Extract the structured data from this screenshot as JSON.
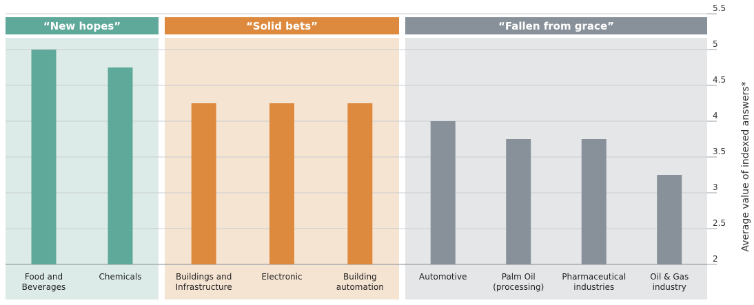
{
  "chart_data": {
    "type": "bar",
    "ylabel": "Average value of indexed answers*",
    "ylim": [
      2,
      5.5
    ],
    "yticks": [
      "5.5",
      "5",
      "4.5",
      "4",
      "3.5",
      "3",
      "2.5",
      "2"
    ],
    "grid": true,
    "groups": [
      {
        "title": "“New hopes”",
        "header_color": "#5fa99a",
        "bg_color": "#dcebe7",
        "bar_color": "#5fa99a",
        "categories": [
          [
            "Food and",
            "Beverages"
          ],
          [
            "Chemicals"
          ]
        ],
        "values": [
          5.0,
          4.75
        ]
      },
      {
        "title": "“Solid bets”",
        "header_color": "#dd8a3e",
        "bg_color": "#f6e4d2",
        "bar_color": "#dd8a3e",
        "categories": [
          [
            "Buildings and",
            "Infrastructure"
          ],
          [
            "Electronic"
          ],
          [
            "Building",
            "automation"
          ]
        ],
        "values": [
          4.25,
          4.25,
          4.25
        ]
      },
      {
        "title": "“Fallen from grace”",
        "header_color": "#889199",
        "bg_color": "#e5e6e8",
        "bar_color": "#889199",
        "categories": [
          [
            "Automotive"
          ],
          [
            "Palm Oil",
            "(processing)"
          ],
          [
            "Pharmaceutical",
            "industries"
          ],
          [
            "Oil & Gas",
            "industry"
          ]
        ],
        "values": [
          4.0,
          3.75,
          3.75,
          3.25
        ]
      }
    ]
  }
}
